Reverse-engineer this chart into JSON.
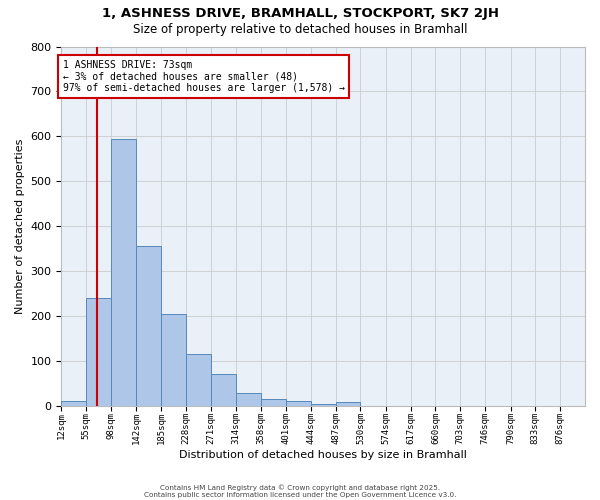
{
  "title_line1": "1, ASHNESS DRIVE, BRAMHALL, STOCKPORT, SK7 2JH",
  "title_line2": "Size of property relative to detached houses in Bramhall",
  "xlabel": "Distribution of detached houses by size in Bramhall",
  "ylabel": "Number of detached properties",
  "bar_values": [
    10,
    240,
    595,
    355,
    205,
    115,
    70,
    28,
    15,
    10,
    5,
    8,
    0,
    0,
    0,
    0,
    0,
    0,
    0,
    0,
    0
  ],
  "bin_edges": [
    12,
    55,
    98,
    142,
    185,
    228,
    271,
    314,
    358,
    401,
    444,
    487,
    530,
    574,
    617,
    660,
    703,
    746,
    790,
    833,
    876
  ],
  "x_labels": [
    "12sqm",
    "55sqm",
    "98sqm",
    "142sqm",
    "185sqm",
    "228sqm",
    "271sqm",
    "314sqm",
    "358sqm",
    "401sqm",
    "444sqm",
    "487sqm",
    "530sqm",
    "574sqm",
    "617sqm",
    "660sqm",
    "703sqm",
    "746sqm",
    "790sqm",
    "833sqm",
    "876sqm"
  ],
  "bar_color": "#aec6e8",
  "bar_edge_color": "#5588bb",
  "grid_color": "#cccccc",
  "background_color": "#eaf0f8",
  "property_line_x": 73,
  "annotation_text": "1 ASHNESS DRIVE: 73sqm\n← 3% of detached houses are smaller (48)\n97% of semi-detached houses are larger (1,578) →",
  "annotation_box_color": "#ffffff",
  "annotation_box_edge_color": "#cc0000",
  "property_line_color": "#cc0000",
  "ylim": [
    0,
    800
  ],
  "yticks": [
    0,
    100,
    200,
    300,
    400,
    500,
    600,
    700,
    800
  ],
  "footer_line1": "Contains HM Land Registry data © Crown copyright and database right 2025.",
  "footer_line2": "Contains public sector information licensed under the Open Government Licence v3.0."
}
